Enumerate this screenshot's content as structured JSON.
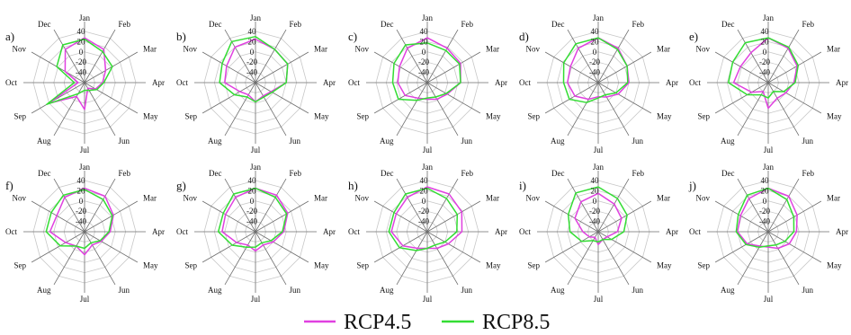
{
  "chart_data": [
    {
      "type": "radar",
      "panel": "a)",
      "rlim": [
        -40,
        40
      ],
      "rticks": [
        "40",
        "20",
        "0",
        "-20",
        "-40"
      ],
      "categories": [
        "Jan",
        "Feb",
        "Mar",
        "Apr",
        "May",
        "Jun",
        "Jul",
        "Aug",
        "Sep",
        "Oct",
        "Nov",
        "Dec"
      ],
      "series": [
        {
          "name": "RCP4.5",
          "values": [
            30,
            20,
            -2,
            -12,
            -20,
            -30,
            2,
            -15,
            25,
            -30,
            -5,
            20
          ]
        },
        {
          "name": "RCP8.5",
          "values": [
            28,
            16,
            10,
            -10,
            -18,
            -26,
            -28,
            -20,
            28,
            -24,
            10,
            28
          ]
        }
      ]
    },
    {
      "type": "radar",
      "panel": "b)",
      "rlim": [
        -40,
        40
      ],
      "rticks": [
        "40",
        "20",
        "0",
        "-20",
        "-40"
      ],
      "categories": [
        "Jan",
        "Feb",
        "Mar",
        "Apr",
        "May",
        "Jun",
        "Jul",
        "Aug",
        "Sep",
        "Oct",
        "Nov",
        "Dec"
      ],
      "series": [
        {
          "name": "RCP4.5",
          "values": [
            28,
            20,
            18,
            8,
            -12,
            -16,
            -10,
            -18,
            -12,
            8,
            12,
            24
          ]
        },
        {
          "name": "RCP8.5",
          "values": [
            32,
            20,
            18,
            8,
            -10,
            -14,
            -10,
            -14,
            -2,
            16,
            20,
            34
          ]
        }
      ]
    },
    {
      "type": "radar",
      "panel": "c)",
      "rlim": [
        -40,
        40
      ],
      "rticks": [
        "40",
        "20",
        "0",
        "-20",
        "-40"
      ],
      "categories": [
        "Jan",
        "Feb",
        "Mar",
        "Apr",
        "May",
        "Jun",
        "Jul",
        "Aug",
        "Sep",
        "Oct",
        "Nov",
        "Dec"
      ],
      "series": [
        {
          "name": "RCP4.5",
          "values": [
            30,
            22,
            20,
            12,
            -4,
            -10,
            -14,
            -12,
            0,
            6,
            10,
            22
          ]
        },
        {
          "name": "RCP8.5",
          "values": [
            22,
            18,
            18,
            12,
            -6,
            -14,
            -16,
            -8,
            12,
            14,
            20,
            28
          ]
        }
      ]
    },
    {
      "type": "radar",
      "panel": "d)",
      "rlim": [
        -40,
        40
      ],
      "rticks": [
        "40",
        "20",
        "0",
        "-20",
        "-40"
      ],
      "categories": [
        "Jan",
        "Feb",
        "Mar",
        "Apr",
        "May",
        "Jun",
        "Jul",
        "Aug",
        "Sep",
        "Oct",
        "Nov",
        "Dec"
      ],
      "series": [
        {
          "name": "RCP4.5",
          "values": [
            30,
            22,
            12,
            8,
            -4,
            -14,
            -18,
            -10,
            2,
            8,
            10,
            22
          ]
        },
        {
          "name": "RCP8.5",
          "values": [
            30,
            20,
            12,
            6,
            -8,
            -18,
            -16,
            -4,
            12,
            14,
            22,
            30
          ]
        }
      ]
    },
    {
      "type": "radar",
      "panel": "e)",
      "rlim": [
        -40,
        40
      ],
      "rticks": [
        "40",
        "20",
        "0",
        "-20",
        "-40"
      ],
      "categories": [
        "Jan",
        "Feb",
        "Mar",
        "Apr",
        "May",
        "Jun",
        "Jul",
        "Aug",
        "Sep",
        "Oct",
        "Nov",
        "Dec"
      ],
      "series": [
        {
          "name": "RCP4.5",
          "values": [
            30,
            22,
            12,
            0,
            -8,
            -12,
            0,
            -24,
            -10,
            14,
            10,
            14
          ]
        },
        {
          "name": "RCP8.5",
          "values": [
            30,
            24,
            14,
            2,
            -12,
            -24,
            -16,
            -18,
            -2,
            22,
            24,
            32
          ]
        }
      ]
    },
    {
      "type": "radar",
      "panel": "f)",
      "rlim": [
        -40,
        40
      ],
      "rticks": [
        "40",
        "20",
        "0",
        "-20",
        "-40"
      ],
      "categories": [
        "Jan",
        "Feb",
        "Mar",
        "Apr",
        "May",
        "Jun",
        "Jul",
        "Aug",
        "Sep",
        "Oct",
        "Nov",
        "Dec"
      ],
      "series": [
        {
          "name": "RCP4.5",
          "values": [
            28,
            24,
            12,
            0,
            -10,
            -16,
            -4,
            -14,
            -6,
            14,
            10,
            22
          ]
        },
        {
          "name": "RCP8.5",
          "values": [
            26,
            18,
            10,
            -2,
            -12,
            -20,
            -14,
            -14,
            4,
            20,
            20,
            26
          ]
        }
      ]
    },
    {
      "type": "radar",
      "panel": "g)",
      "rlim": [
        -40,
        40
      ],
      "rticks": [
        "40",
        "20",
        "0",
        "-20",
        "-40"
      ],
      "categories": [
        "Jan",
        "Feb",
        "Mar",
        "Apr",
        "May",
        "Jun",
        "Jul",
        "Aug",
        "Sep",
        "Oct",
        "Nov",
        "Dec"
      ],
      "series": [
        {
          "name": "RCP4.5",
          "values": [
            28,
            26,
            18,
            4,
            -8,
            -16,
            -10,
            -16,
            -6,
            12,
            14,
            22
          ]
        },
        {
          "name": "RCP8.5",
          "values": [
            28,
            22,
            16,
            2,
            -12,
            -20,
            -16,
            -12,
            2,
            18,
            18,
            28
          ]
        }
      ]
    },
    {
      "type": "radar",
      "panel": "h)",
      "rlim": [
        -40,
        40
      ],
      "rticks": [
        "40",
        "20",
        "0",
        "-20",
        "-40"
      ],
      "categories": [
        "Jan",
        "Feb",
        "Mar",
        "Apr",
        "May",
        "Jun",
        "Jul",
        "Aug",
        "Sep",
        "Oct",
        "Nov",
        "Dec"
      ],
      "series": [
        {
          "name": "RCP4.5",
          "values": [
            30,
            28,
            22,
            14,
            -2,
            -10,
            -14,
            -10,
            4,
            16,
            16,
            22
          ]
        },
        {
          "name": "RCP8.5",
          "values": [
            28,
            20,
            14,
            6,
            -8,
            -16,
            -14,
            -6,
            10,
            20,
            20,
            28
          ]
        }
      ]
    },
    {
      "type": "radar",
      "panel": "i)",
      "rlim": [
        -40,
        40
      ],
      "rticks": [
        "40",
        "20",
        "0",
        "-20",
        "-40"
      ],
      "categories": [
        "Jan",
        "Feb",
        "Mar",
        "Apr",
        "May",
        "Jun",
        "Jul",
        "Aug",
        "Sep",
        "Oct",
        "Nov",
        "Dec"
      ],
      "series": [
        {
          "name": "RCP4.5",
          "values": [
            20,
            10,
            2,
            -10,
            -24,
            -26,
            -20,
            -30,
            -24,
            -16,
            2,
            14
          ]
        },
        {
          "name": "RCP8.5",
          "values": [
            30,
            20,
            12,
            0,
            -16,
            -26,
            -24,
            -24,
            -10,
            4,
            14,
            30
          ]
        }
      ]
    },
    {
      "type": "radar",
      "panel": "j)",
      "rlim": [
        -40,
        40
      ],
      "rticks": [
        "40",
        "20",
        "0",
        "-20",
        "-40"
      ],
      "categories": [
        "Jan",
        "Feb",
        "Mar",
        "Apr",
        "May",
        "Jun",
        "Jul",
        "Aug",
        "Sep",
        "Oct",
        "Nov",
        "Dec"
      ],
      "series": [
        {
          "name": "RCP4.5",
          "values": [
            28,
            24,
            12,
            4,
            -2,
            -10,
            -16,
            -14,
            -2,
            8,
            10,
            20
          ]
        },
        {
          "name": "RCP8.5",
          "values": [
            28,
            18,
            6,
            0,
            -10,
            -16,
            -18,
            -12,
            0,
            10,
            14,
            26
          ]
        }
      ]
    }
  ],
  "legend": {
    "items": [
      {
        "label": "RCP4.5",
        "color": "#e040e0"
      },
      {
        "label": "RCP8.5",
        "color": "#33dd33"
      }
    ]
  },
  "colors": {
    "rcp45": "#e040e0",
    "rcp85": "#33dd33",
    "grid": "#c8c8c8",
    "spoke": "#6e6e6e"
  }
}
